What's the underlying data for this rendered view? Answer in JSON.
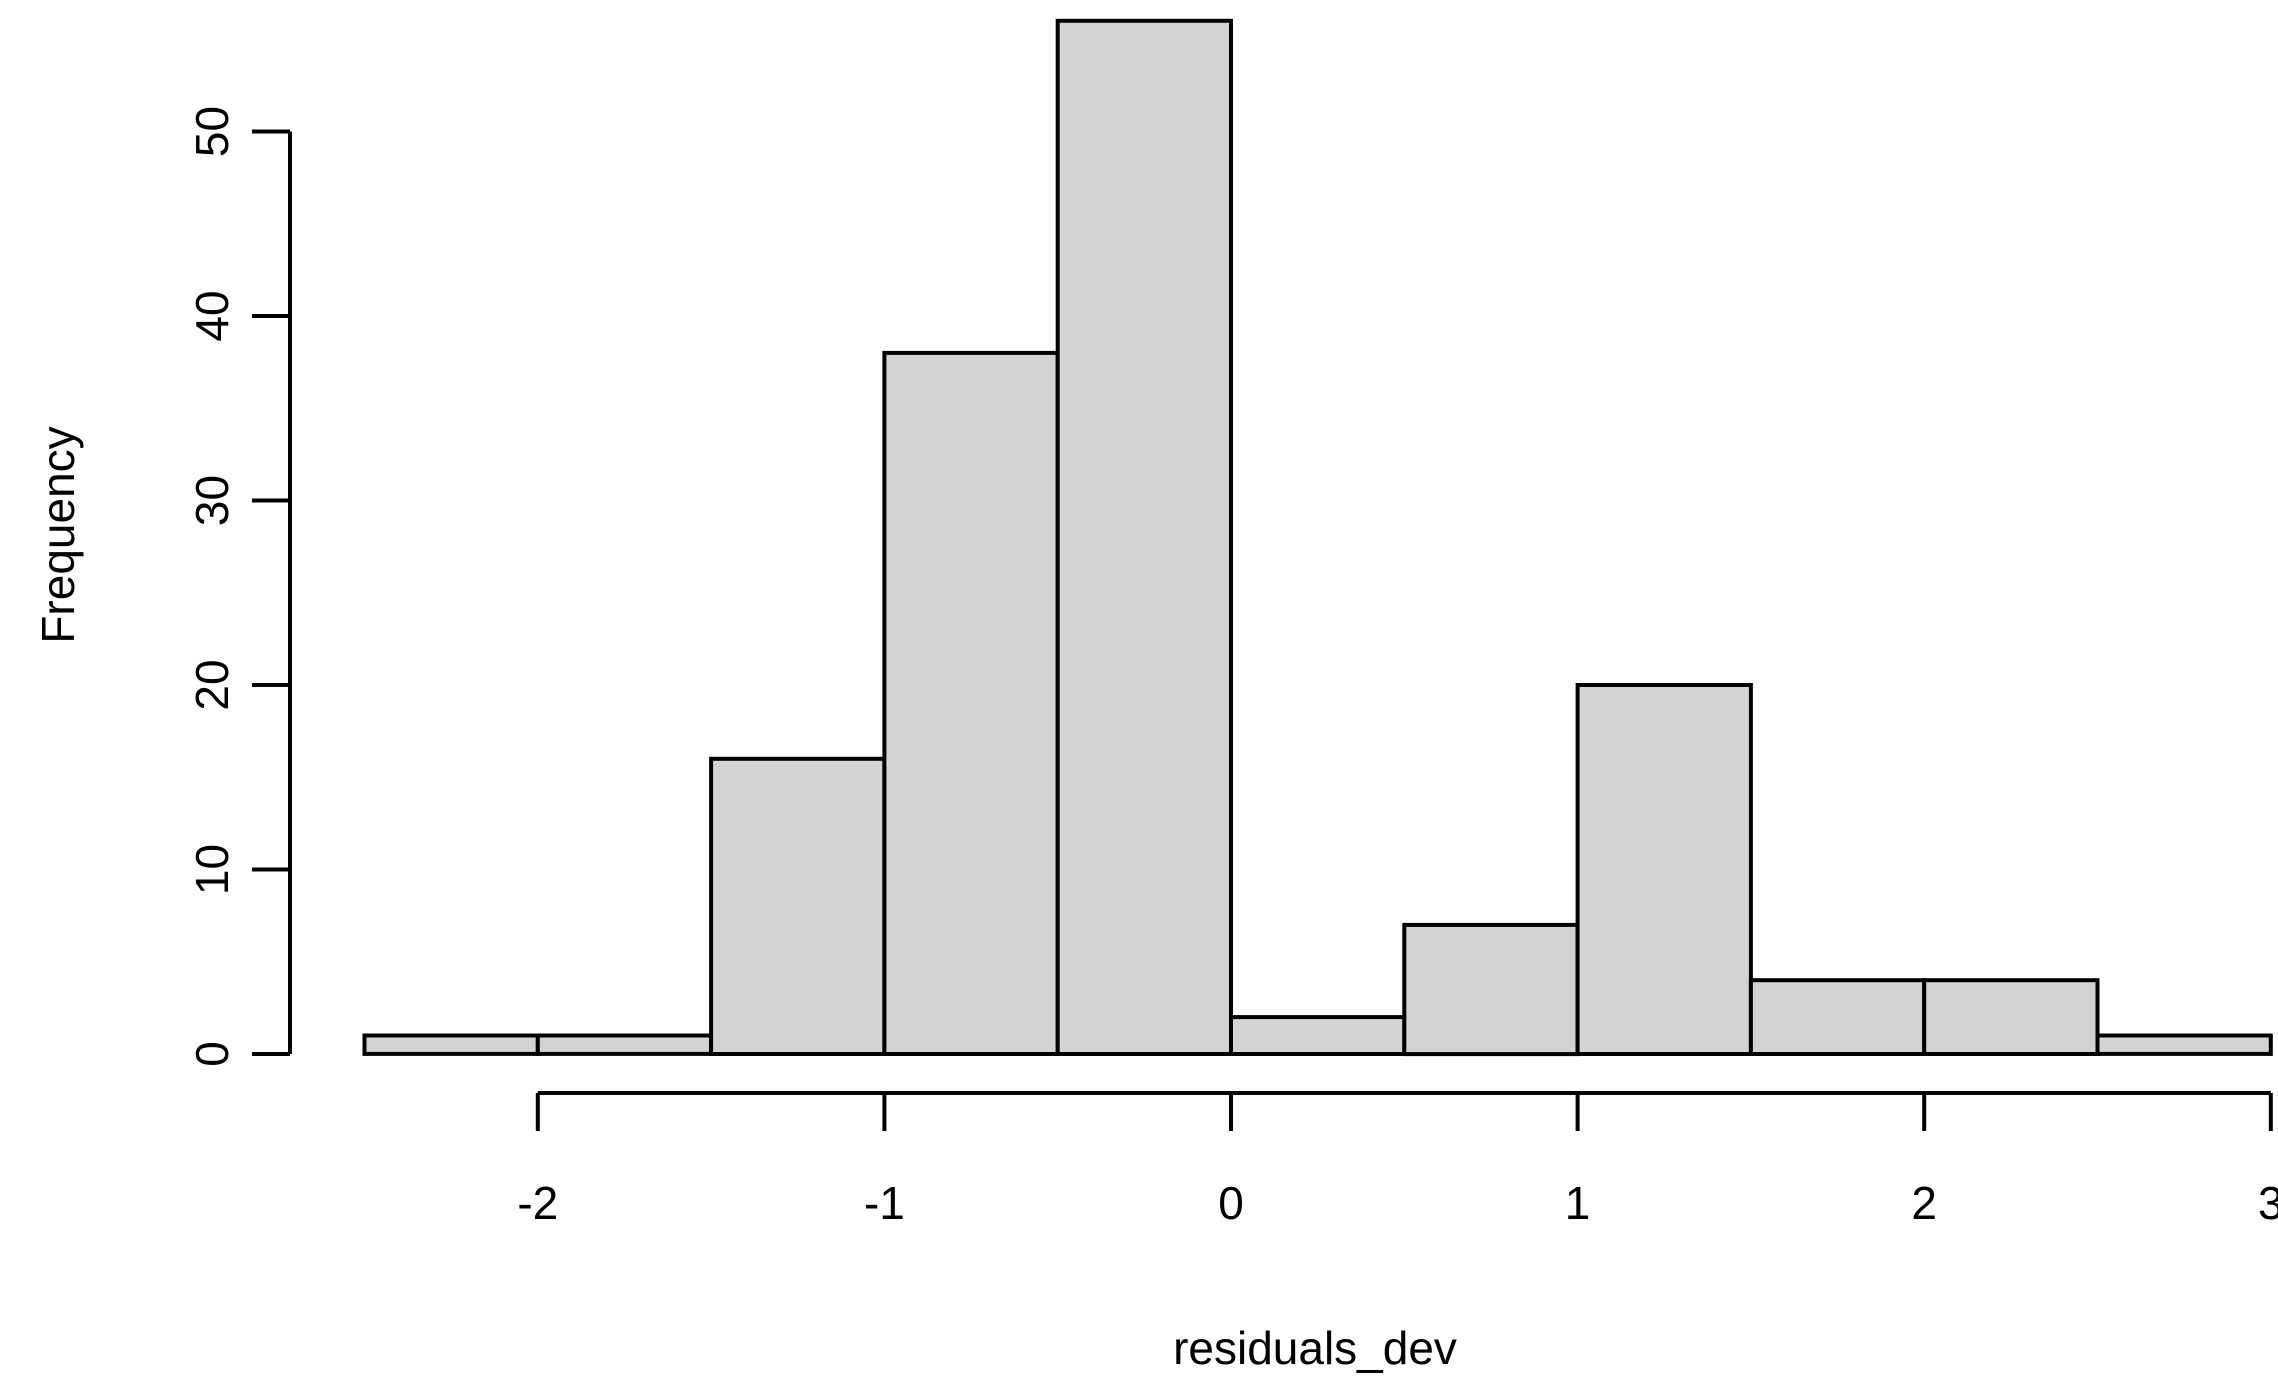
{
  "chart_data": {
    "type": "histogram",
    "title": "",
    "xlabel": "residuals_dev",
    "ylabel": "Frequency",
    "bin_edges": [
      -2.5,
      -2.0,
      -1.5,
      -1.0,
      -0.5,
      0.0,
      0.5,
      1.0,
      1.5,
      2.0,
      2.5,
      3.0
    ],
    "counts": [
      1,
      1,
      16,
      38,
      56,
      2,
      7,
      20,
      4,
      4,
      1
    ],
    "x_ticks": [
      -2,
      -1,
      0,
      1,
      2,
      3
    ],
    "x_tick_labels": [
      "-2",
      "-1",
      "0",
      "1",
      "2",
      "3"
    ],
    "y_ticks": [
      0,
      10,
      20,
      30,
      40,
      50
    ],
    "y_tick_labels": [
      "0",
      "10",
      "20",
      "30",
      "40",
      "50"
    ],
    "xlim": [
      -2.5,
      3.0
    ],
    "ylim": [
      0,
      56
    ],
    "grid": false,
    "legend": null,
    "colors": {
      "bar_fill": "#d3d3d3",
      "bar_border": "#000000",
      "axis": "#000000",
      "text": "#000000",
      "background": "#ffffff"
    }
  }
}
